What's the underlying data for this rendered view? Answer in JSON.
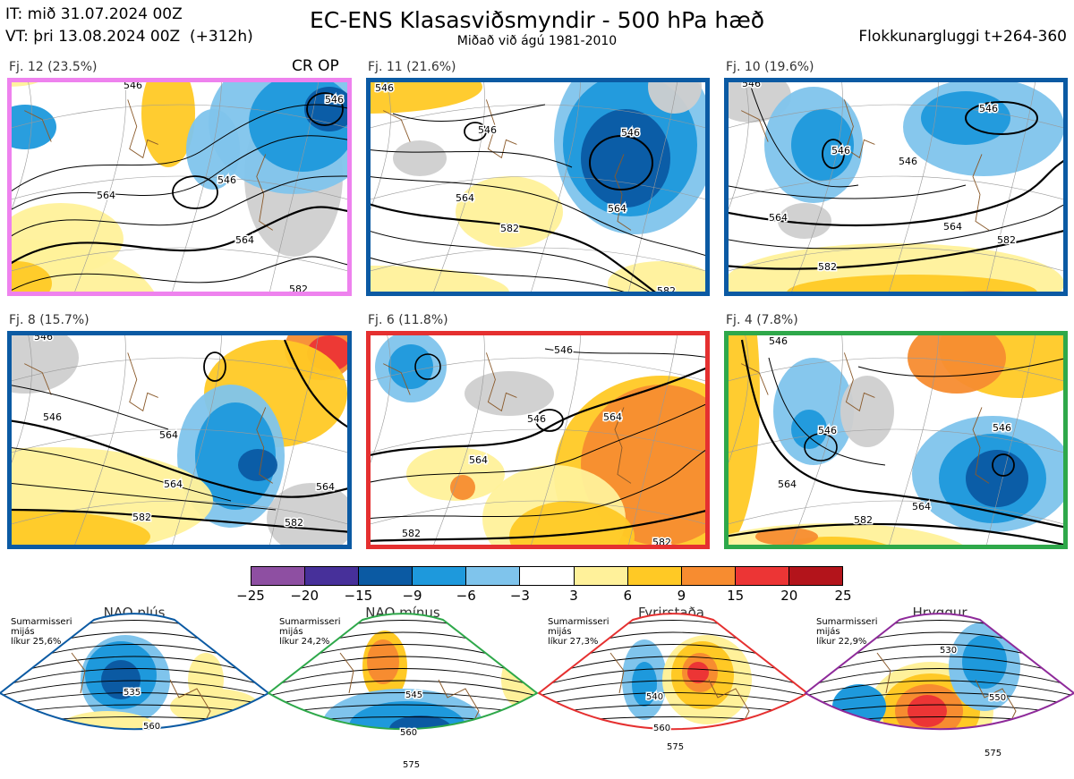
{
  "header": {
    "it_line": "IT: mið 31.07.2024 00Z",
    "vt_line": "VT: þri 13.08.2024 00Z  (+312h)",
    "title": "EC-ENS Klasasviðsmyndir - 500 hPa hæð",
    "subtitle": "Miðað við ágú 1981-2010",
    "window": "Flokkunargluggi t+264-360"
  },
  "clusters": [
    {
      "label": "Fj. 12 (23.5%)",
      "border": "#ee82ee",
      "tag": "CR OP",
      "contours": [
        "546",
        "546",
        "564",
        "564",
        "546",
        "582"
      ]
    },
    {
      "label": "Fj. 11 (21.6%)",
      "border": "#0b5aa3",
      "tag": "",
      "contours": [
        "546",
        "546",
        "546",
        "564",
        "564",
        "582",
        "582"
      ]
    },
    {
      "label": "Fj. 10 (19.6%)",
      "border": "#0b5aa3",
      "tag": "",
      "contours": [
        "546",
        "546",
        "546",
        "546",
        "564",
        "564",
        "582",
        "582"
      ]
    },
    {
      "label": "Fj. 8 (15.7%)",
      "border": "#0b5aa3",
      "tag": "",
      "contours": [
        "546",
        "564",
        "546",
        "564",
        "564",
        "582",
        "582"
      ]
    },
    {
      "label": "Fj. 6 (11.8%)",
      "border": "#e53030",
      "tag": "",
      "contours": [
        "546",
        "546",
        "564",
        "564",
        "582",
        "582"
      ]
    },
    {
      "label": "Fj. 4 (7.8%)",
      "border": "#2ea84a",
      "tag": "",
      "contours": [
        "546",
        "546",
        "546",
        "564",
        "564",
        "582"
      ]
    }
  ],
  "colorbar": {
    "colors": [
      "#8e4fa2",
      "#47309a",
      "#0b5aa3",
      "#1e99dc",
      "#7fc4ec",
      "#ffffff",
      "#fff19a",
      "#ffc925",
      "#f78c30",
      "#ec3535",
      "#b3141b"
    ],
    "ticks": [
      "−25",
      "−20",
      "−15",
      "−9",
      "−6",
      "−3",
      "3",
      "6",
      "9",
      "15",
      "20",
      "25"
    ]
  },
  "regimes": [
    {
      "name": "NAO plús",
      "info": "Sumarmisseri\nmijás\nlíkur 25,6%",
      "dot_color": "#0b5aa3",
      "outline": "#0b5aa3",
      "contours": [
        "535",
        "560"
      ]
    },
    {
      "name": "NAO mínus",
      "info": "Sumarmisseri\nmijás\nlíkur 24,2%",
      "dot_color": "#2ea84a",
      "outline": "#2ea84a",
      "contours": [
        "545",
        "560",
        "575"
      ]
    },
    {
      "name": "Fyrirstaða",
      "info": "Sumarmisseri\nmijás\nlíkur 27,3%",
      "dot_color": "#e53030",
      "outline": "#e53030",
      "contours": [
        "540",
        "560",
        "575"
      ]
    },
    {
      "name": "Hryggur",
      "info": "Sumarmisseri\nmijás\nlíkur 22,9%",
      "dot_color": "#ee82ee",
      "outline": "#8e2a9a",
      "contours": [
        "530",
        "550",
        "575"
      ]
    }
  ]
}
